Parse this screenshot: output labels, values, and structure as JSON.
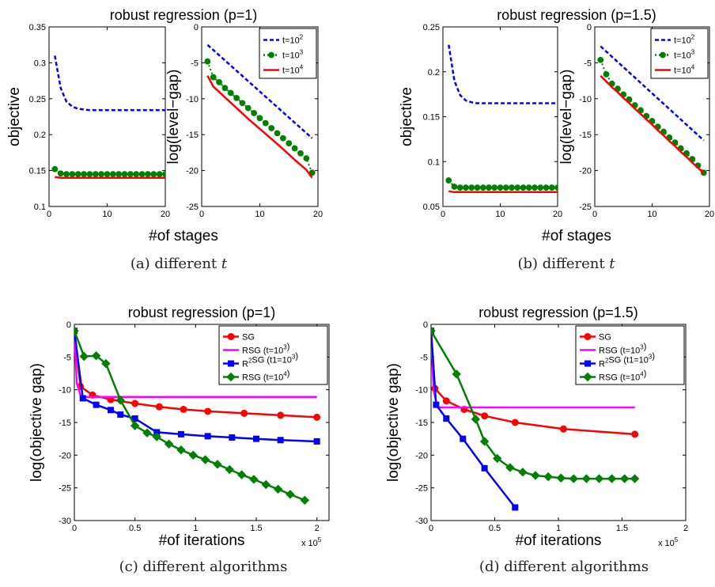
{
  "captions": {
    "a": "(a)  different",
    "b": "(b)  different",
    "c": "(c)  different algorithms",
    "d": "(d)  different algorithms",
    "var": "t"
  },
  "chart_data": [
    {
      "id": "a-left",
      "type": "line",
      "title": "robust regression (p=1)",
      "xlabel": "#of stages",
      "ylabel": "objective",
      "xlim": [
        0,
        20
      ],
      "ylim": [
        0.1,
        0.35
      ],
      "xticks": [
        "0",
        "10",
        "20"
      ],
      "yticks": [
        "0.1",
        "0.15",
        "0.2",
        "0.25",
        "0.3",
        "0.35"
      ],
      "series": [
        {
          "name": "t=10^2",
          "color": "#0000ff",
          "style": "dashed",
          "x": [
            1,
            2,
            3,
            4,
            5,
            6,
            7,
            8,
            9,
            10,
            11,
            12,
            13,
            14,
            15,
            16,
            17,
            18,
            19,
            20
          ],
          "y": [
            0.31,
            0.265,
            0.246,
            0.239,
            0.236,
            0.235,
            0.234,
            0.234,
            0.234,
            0.234,
            0.234,
            0.234,
            0.234,
            0.234,
            0.234,
            0.234,
            0.234,
            0.234,
            0.234,
            0.234
          ]
        },
        {
          "name": "t=10^3",
          "color": "#008000",
          "style": "dotted-marker",
          "x": [
            1,
            2,
            3,
            4,
            5,
            6,
            7,
            8,
            9,
            10,
            11,
            12,
            13,
            14,
            15,
            16,
            17,
            18,
            19,
            20
          ],
          "y": [
            0.152,
            0.146,
            0.145,
            0.145,
            0.145,
            0.145,
            0.145,
            0.145,
            0.145,
            0.145,
            0.145,
            0.145,
            0.145,
            0.145,
            0.145,
            0.145,
            0.145,
            0.145,
            0.145,
            0.145
          ]
        },
        {
          "name": "t=10^4",
          "color": "#ff0000",
          "style": "solid",
          "x": [
            1,
            2,
            3,
            4,
            5,
            6,
            7,
            8,
            9,
            10,
            11,
            12,
            13,
            14,
            15,
            16,
            17,
            18,
            19,
            20
          ],
          "y": [
            0.141,
            0.14,
            0.14,
            0.14,
            0.14,
            0.14,
            0.14,
            0.14,
            0.14,
            0.14,
            0.14,
            0.14,
            0.14,
            0.14,
            0.14,
            0.14,
            0.14,
            0.14,
            0.14,
            0.14
          ]
        }
      ]
    },
    {
      "id": "a-right",
      "type": "line",
      "title": "",
      "xlabel": "",
      "ylabel": "log(level−gap)",
      "xlim": [
        0,
        20
      ],
      "ylim": [
        -25,
        0
      ],
      "xticks": [
        "0",
        "10",
        "20"
      ],
      "yticks": [
        "0",
        "-5",
        "-10",
        "-15",
        "-20",
        "-25"
      ],
      "legend": "top-right",
      "series": [
        {
          "name": "t=10^2",
          "color": "#0000ff",
          "style": "dashed",
          "x": [
            1,
            19
          ],
          "y": [
            -2.5,
            -15.5
          ]
        },
        {
          "name": "t=10^3",
          "color": "#008000",
          "style": "dotted-marker",
          "x": [
            1,
            2,
            3,
            4,
            5,
            6,
            7,
            8,
            9,
            10,
            11,
            12,
            13,
            14,
            15,
            16,
            17,
            18,
            19
          ],
          "y": [
            -4.8,
            -7.0,
            -7.7,
            -8.5,
            -9.2,
            -9.9,
            -10.6,
            -11.3,
            -12.0,
            -12.7,
            -13.4,
            -14.1,
            -14.8,
            -15.5,
            -16.2,
            -16.9,
            -17.6,
            -18.3,
            -20.3
          ]
        },
        {
          "name": "t=10^4",
          "color": "#ff0000",
          "style": "solid",
          "x": [
            1,
            2,
            4,
            6,
            8,
            10,
            12,
            14,
            16,
            18,
            19
          ],
          "y": [
            -6.8,
            -8.3,
            -9.8,
            -11.3,
            -12.8,
            -14.2,
            -15.6,
            -17.0,
            -18.5,
            -19.9,
            -21.0
          ]
        }
      ]
    },
    {
      "id": "b-left",
      "type": "line",
      "title": "robust regression (p=1.5)",
      "xlabel": "#of stages",
      "ylabel": "objective",
      "xlim": [
        0,
        20
      ],
      "ylim": [
        0.05,
        0.25
      ],
      "xticks": [
        "0",
        "10",
        "20"
      ],
      "yticks": [
        "0.05",
        "0.1",
        "0.15",
        "0.2",
        "0.25"
      ],
      "series": [
        {
          "name": "t=10^2",
          "color": "#0000ff",
          "style": "dashed",
          "x": [
            1,
            2,
            3,
            4,
            5,
            6,
            7,
            8,
            9,
            10,
            11,
            12,
            13,
            14,
            15,
            16,
            17,
            18,
            19,
            20
          ],
          "y": [
            0.23,
            0.19,
            0.174,
            0.168,
            0.166,
            0.165,
            0.165,
            0.165,
            0.165,
            0.165,
            0.165,
            0.165,
            0.165,
            0.165,
            0.165,
            0.165,
            0.165,
            0.165,
            0.165,
            0.165
          ]
        },
        {
          "name": "t=10^3",
          "color": "#008000",
          "style": "dotted-marker",
          "x": [
            1,
            2,
            3,
            4,
            5,
            6,
            7,
            8,
            9,
            10,
            11,
            12,
            13,
            14,
            15,
            16,
            17,
            18,
            19,
            20
          ],
          "y": [
            0.079,
            0.072,
            0.071,
            0.071,
            0.071,
            0.071,
            0.071,
            0.071,
            0.071,
            0.071,
            0.071,
            0.071,
            0.071,
            0.071,
            0.071,
            0.071,
            0.071,
            0.071,
            0.071,
            0.071
          ]
        },
        {
          "name": "t=10^4",
          "color": "#ff0000",
          "style": "solid",
          "x": [
            1,
            2,
            3,
            4,
            5,
            6,
            7,
            8,
            9,
            10,
            11,
            12,
            13,
            14,
            15,
            16,
            17,
            18,
            19,
            20
          ],
          "y": [
            0.067,
            0.066,
            0.066,
            0.066,
            0.066,
            0.066,
            0.066,
            0.066,
            0.066,
            0.066,
            0.066,
            0.066,
            0.066,
            0.066,
            0.066,
            0.066,
            0.066,
            0.066,
            0.066,
            0.066
          ]
        }
      ]
    },
    {
      "id": "b-right",
      "type": "line",
      "title": "",
      "xlabel": "",
      "ylabel": "log(level−gap)",
      "xlim": [
        0,
        20
      ],
      "ylim": [
        -25,
        0
      ],
      "xticks": [
        "0",
        "10",
        "20"
      ],
      "yticks": [
        "0",
        "-5",
        "-10",
        "-15",
        "-20",
        "-25"
      ],
      "legend": "top-right",
      "series": [
        {
          "name": "t=10^2",
          "color": "#0000ff",
          "style": "dashed",
          "x": [
            1,
            19
          ],
          "y": [
            -2.7,
            -15.8
          ]
        },
        {
          "name": "t=10^3",
          "color": "#008000",
          "style": "dotted-marker",
          "x": [
            1,
            2,
            3,
            4,
            5,
            6,
            7,
            8,
            9,
            10,
            11,
            12,
            13,
            14,
            15,
            16,
            17,
            18,
            19
          ],
          "y": [
            -4.6,
            -6.6,
            -7.9,
            -8.6,
            -9.4,
            -10.1,
            -10.9,
            -11.6,
            -12.4,
            -13.1,
            -13.9,
            -14.6,
            -15.4,
            -16.1,
            -16.9,
            -17.6,
            -18.4,
            -19.3,
            -20.3
          ]
        },
        {
          "name": "t=10^4",
          "color": "#ff0000",
          "style": "solid",
          "x": [
            1,
            2,
            3,
            4,
            5,
            6,
            7,
            8,
            9,
            10,
            11,
            12,
            13,
            14,
            15,
            16,
            17,
            18,
            19
          ],
          "y": [
            -6.8,
            -7.6,
            -8.4,
            -9.1,
            -9.9,
            -10.6,
            -11.4,
            -12.1,
            -12.9,
            -13.6,
            -14.4,
            -15.1,
            -15.9,
            -16.6,
            -17.4,
            -18.1,
            -18.9,
            -19.6,
            -20.4
          ]
        }
      ]
    },
    {
      "id": "c",
      "type": "line",
      "title": "robust regression (p=1)",
      "xlabel": "#of iterations",
      "ylabel": "log(objective gap)",
      "x_scale_note": "x 10^5",
      "xlim": [
        0,
        2.1
      ],
      "ylim": [
        -30,
        0
      ],
      "xticks": [
        "0",
        "0.5",
        "1",
        "1.5",
        "2"
      ],
      "yticks": [
        "0",
        "-5",
        "-10",
        "-15",
        "-20",
        "-25",
        "-30"
      ],
      "legend": "top-right",
      "series": [
        {
          "name": "SG",
          "color": "#ff0000",
          "marker": "circle",
          "x": [
            0,
            0.05,
            0.15,
            0.3,
            0.5,
            0.7,
            0.9,
            1.1,
            1.4,
            1.7,
            2.0
          ],
          "y": [
            -1,
            -9.5,
            -10.8,
            -11.5,
            -12.1,
            -12.6,
            -13.0,
            -13.3,
            -13.6,
            -13.9,
            -14.2
          ]
        },
        {
          "name": "RSG (t=10^3)",
          "color": "#ff00ff",
          "marker": "none",
          "x": [
            0,
            0.02,
            0.05,
            0.1,
            0.5,
            1.0,
            1.5,
            2.0
          ],
          "y": [
            -1,
            -9,
            -10.8,
            -11.1,
            -11.1,
            -11.1,
            -11.1,
            -11.1
          ]
        },
        {
          "name": "R^2SG (t1=10^3)",
          "color": "#0000ff",
          "marker": "square",
          "x": [
            0,
            0.07,
            0.18,
            0.3,
            0.38,
            0.5,
            0.68,
            0.88,
            1.1,
            1.3,
            1.5,
            1.7,
            2.0
          ],
          "y": [
            -1,
            -11.3,
            -12.3,
            -13.1,
            -13.8,
            -14.4,
            -16.5,
            -16.8,
            -17.1,
            -17.3,
            -17.5,
            -17.7,
            -17.9
          ]
        },
        {
          "name": "RSG (t=10^4)",
          "color": "#008000",
          "marker": "diamond",
          "x": [
            0,
            0.08,
            0.18,
            0.26,
            0.38,
            0.5,
            0.6,
            0.68,
            0.78,
            0.88,
            0.98,
            1.08,
            1.18,
            1.28,
            1.38,
            1.48,
            1.58,
            1.68,
            1.78,
            1.9
          ],
          "y": [
            -1,
            -4.9,
            -4.8,
            -6.0,
            -11.6,
            -15.5,
            -16.6,
            -17.2,
            -18.3,
            -19.2,
            -20.0,
            -20.7,
            -21.4,
            -22.2,
            -23.0,
            -23.7,
            -24.5,
            -25.2,
            -26.0,
            -26.9
          ]
        }
      ]
    },
    {
      "id": "d",
      "type": "line",
      "title": "robust regression (p=1.5)",
      "xlabel": "#of iterations",
      "ylabel": "log(objective gap)",
      "x_scale_note": "x 10^5",
      "xlim": [
        0,
        2
      ],
      "ylim": [
        -30,
        0
      ],
      "xticks": [
        "0",
        "0.5",
        "1",
        "1.5",
        "2"
      ],
      "yticks": [
        "0",
        "-5",
        "-10",
        "-15",
        "-20",
        "-25",
        "-30"
      ],
      "legend": "top-right",
      "series": [
        {
          "name": "SG",
          "color": "#ff0000",
          "marker": "circle",
          "x": [
            0,
            0.03,
            0.12,
            0.26,
            0.42,
            0.66,
            1.04,
            1.6
          ],
          "y": [
            -1,
            -9.8,
            -11.7,
            -13.0,
            -14.0,
            -15.0,
            -16.0,
            -16.8
          ]
        },
        {
          "name": "RSG (t=10^3)",
          "color": "#ff00ff",
          "marker": "none",
          "x": [
            0,
            0.02,
            0.05,
            0.5,
            1.0,
            1.6
          ],
          "y": [
            -1,
            -10,
            -12.7,
            -12.7,
            -12.7,
            -12.7
          ]
        },
        {
          "name": "R^2SG (t1=10^3)",
          "color": "#0000ff",
          "marker": "square",
          "x": [
            0,
            0.04,
            0.12,
            0.25,
            0.42,
            0.66
          ],
          "y": [
            -1,
            -12.3,
            -14.4,
            -17.5,
            -22.0,
            -28.0
          ]
        },
        {
          "name": "RSG (t=10^4)",
          "color": "#008000",
          "marker": "diamond",
          "x": [
            0,
            0.2,
            0.35,
            0.42,
            0.52,
            0.62,
            0.72,
            0.82,
            0.92,
            1.02,
            1.12,
            1.22,
            1.32,
            1.42,
            1.52,
            1.6
          ],
          "y": [
            -1,
            -7.6,
            -14.5,
            -17.9,
            -20.5,
            -21.9,
            -22.6,
            -23.1,
            -23.3,
            -23.5,
            -23.6,
            -23.6,
            -23.6,
            -23.6,
            -23.6,
            -23.6
          ]
        }
      ]
    }
  ]
}
